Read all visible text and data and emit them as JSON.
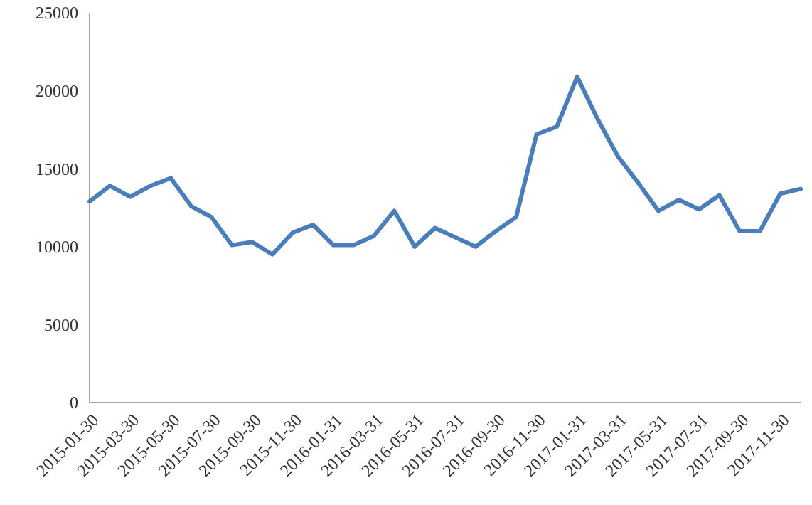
{
  "chart_data": {
    "type": "line",
    "categories": [
      "2015-01-30",
      null,
      "2015-03-30",
      null,
      "2015-05-30",
      null,
      "2015-07-30",
      null,
      "2015-09-30",
      null,
      "2015-11-30",
      null,
      "2016-01-31",
      null,
      "2016-03-31",
      null,
      "2016-05-31",
      null,
      "2016-07-31",
      null,
      "2016-09-30",
      null,
      "2016-11-30",
      null,
      "2017-01-31",
      null,
      "2017-03-31",
      null,
      "2017-05-31",
      null,
      "2017-07-31",
      null,
      "2017-09-30",
      null,
      "2017-11-30",
      null
    ],
    "series": [
      {
        "color": "#4a7ebb",
        "values": [
          12900,
          13900,
          13200,
          13900,
          14400,
          12600,
          11900,
          10100,
          10300,
          9500,
          10900,
          11400,
          10100,
          10100,
          10700,
          12300,
          10000,
          11200,
          10600,
          10000,
          11000,
          11900,
          17200,
          17700,
          20900,
          18200,
          15800,
          14100,
          12300,
          13000,
          12400,
          13300,
          11000,
          11000,
          13400,
          13700
        ]
      }
    ],
    "ylim": [
      0,
      25000
    ],
    "yticks": [
      0,
      5000,
      10000,
      15000,
      20000,
      25000
    ],
    "grid": false,
    "marker": "none",
    "line_style": "solid"
  }
}
